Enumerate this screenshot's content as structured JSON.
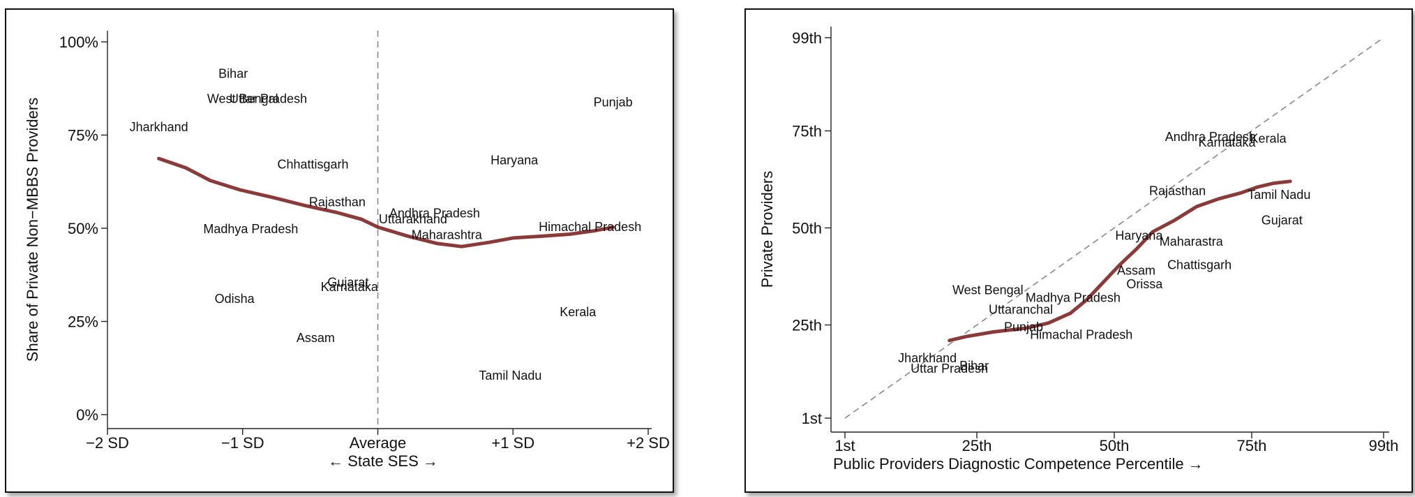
{
  "colors": {
    "trend_line": "#8b3a3a",
    "axis": "#222222",
    "reference": "#888888"
  },
  "chart_data": [
    {
      "type": "scatter",
      "ylabel": "Share of Private Non−MBBS Providers",
      "xlabel": "← State SES →",
      "xlim": [
        -2,
        2
      ],
      "ylim": [
        0,
        1
      ],
      "x_ticks": [
        {
          "value": -2,
          "label": "−2 SD"
        },
        {
          "value": -1,
          "label": "−1 SD"
        },
        {
          "value": 0,
          "label": "Average"
        },
        {
          "value": 1,
          "label": "+1 SD"
        },
        {
          "value": 2,
          "label": "+2 SD"
        }
      ],
      "y_ticks": [
        {
          "value": 0,
          "label": "0%"
        },
        {
          "value": 0.25,
          "label": "25%"
        },
        {
          "value": 0.5,
          "label": "50%"
        },
        {
          "value": 0.75,
          "label": "75%"
        },
        {
          "value": 1,
          "label": "100%"
        }
      ],
      "reference_line": {
        "type": "vertical",
        "x": 0,
        "style": "dashed"
      },
      "points": [
        {
          "label": "Bihar",
          "x": -1.07,
          "y": 0.915
        },
        {
          "label": "West Bengal",
          "x": -1.0,
          "y": 0.847
        },
        {
          "label": "Uttar Pradesh",
          "x": -0.81,
          "y": 0.847
        },
        {
          "label": "Jharkhand",
          "x": -1.62,
          "y": 0.772
        },
        {
          "label": "Punjab",
          "x": 1.74,
          "y": 0.838
        },
        {
          "label": "Chhattisgarh",
          "x": -0.48,
          "y": 0.671
        },
        {
          "label": "Haryana",
          "x": 1.01,
          "y": 0.683
        },
        {
          "label": "Rajasthan",
          "x": -0.3,
          "y": 0.57
        },
        {
          "label": "Andhra Pradesh",
          "x": 0.42,
          "y": 0.54
        },
        {
          "label": "Uttarakhand",
          "x": 0.26,
          "y": 0.524
        },
        {
          "label": "Maharashtra",
          "x": 0.51,
          "y": 0.482
        },
        {
          "label": "Himachal Pradesh",
          "x": 1.57,
          "y": 0.504
        },
        {
          "label": "Madhya Pradesh",
          "x": -0.94,
          "y": 0.498
        },
        {
          "label": "Gujarat",
          "x": -0.22,
          "y": 0.355
        },
        {
          "label": "Karnataka",
          "x": -0.21,
          "y": 0.343
        },
        {
          "label": "Odisha",
          "x": -1.06,
          "y": 0.311
        },
        {
          "label": "Kerala",
          "x": 1.48,
          "y": 0.275
        },
        {
          "label": "Assam",
          "x": -0.46,
          "y": 0.206
        },
        {
          "label": "Tamil Nadu",
          "x": 0.98,
          "y": 0.105
        }
      ],
      "trend_line": [
        [
          -1.62,
          0.687
        ],
        [
          -1.42,
          0.662
        ],
        [
          -1.24,
          0.628
        ],
        [
          -1.02,
          0.603
        ],
        [
          -0.78,
          0.583
        ],
        [
          -0.54,
          0.561
        ],
        [
          -0.3,
          0.542
        ],
        [
          -0.12,
          0.524
        ],
        [
          0.0,
          0.503
        ],
        [
          0.22,
          0.479
        ],
        [
          0.44,
          0.459
        ],
        [
          0.62,
          0.451
        ],
        [
          0.82,
          0.462
        ],
        [
          1.0,
          0.474
        ],
        [
          1.22,
          0.479
        ],
        [
          1.42,
          0.484
        ],
        [
          1.6,
          0.493
        ],
        [
          1.74,
          0.503
        ]
      ]
    },
    {
      "type": "scatter",
      "ylabel": "Private Providers",
      "xlabel": "Public Providers  Diagnostic Competence Percentile →",
      "xlim": [
        1,
        99
      ],
      "ylim": [
        1,
        99
      ],
      "x_ticks": [
        {
          "value": 1,
          "label": "1st"
        },
        {
          "value": 25,
          "label": "25th"
        },
        {
          "value": 50,
          "label": "50th"
        },
        {
          "value": 75,
          "label": "75th"
        },
        {
          "value": 99,
          "label": "99th"
        }
      ],
      "y_ticks": [
        {
          "value": 1,
          "label": "1st"
        },
        {
          "value": 25,
          "label": "25th"
        },
        {
          "value": 50,
          "label": "50th"
        },
        {
          "value": 75,
          "label": "75th"
        },
        {
          "value": 99,
          "label": "99th"
        }
      ],
      "reference_line": {
        "type": "diagonal",
        "from": [
          1,
          1
        ],
        "to": [
          99,
          99
        ],
        "style": "dashed"
      },
      "points": [
        {
          "label": "Andhra Pradesh",
          "x": 67.5,
          "y": 73.5
        },
        {
          "label": "Karnataka",
          "x": 70.5,
          "y": 72.0
        },
        {
          "label": "Kerala",
          "x": 78.0,
          "y": 73.0
        },
        {
          "label": "Rajasthan",
          "x": 61.5,
          "y": 59.5
        },
        {
          "label": "Tamil Nadu",
          "x": 80.0,
          "y": 58.5
        },
        {
          "label": "Gujarat",
          "x": 80.5,
          "y": 52.0
        },
        {
          "label": "Haryana",
          "x": 54.5,
          "y": 48.0
        },
        {
          "label": "Maharastra",
          "x": 64.0,
          "y": 46.5
        },
        {
          "label": "Chattisgarh",
          "x": 65.5,
          "y": 40.5
        },
        {
          "label": "Assam",
          "x": 54.0,
          "y": 39.0
        },
        {
          "label": "Orissa",
          "x": 55.5,
          "y": 35.5
        },
        {
          "label": "West Bengal",
          "x": 27.0,
          "y": 34.0
        },
        {
          "label": "Madhya Pradesh",
          "x": 42.5,
          "y": 32.0
        },
        {
          "label": "Uttaranchal",
          "x": 33.0,
          "y": 29.0
        },
        {
          "label": "Punjab",
          "x": 33.5,
          "y": 24.5
        },
        {
          "label": "Himachal Pradesh",
          "x": 44.0,
          "y": 22.5
        },
        {
          "label": "Jharkhand",
          "x": 16.0,
          "y": 16.5
        },
        {
          "label": "Bihar",
          "x": 24.5,
          "y": 14.5
        },
        {
          "label": "Uttar Pradesh",
          "x": 20.0,
          "y": 13.8
        }
      ],
      "trend_line": [
        [
          20,
          21.0
        ],
        [
          23,
          22.0
        ],
        [
          28,
          23.2
        ],
        [
          34,
          24.2
        ],
        [
          38,
          25.5
        ],
        [
          42,
          28.0
        ],
        [
          45,
          31.5
        ],
        [
          48,
          36.0
        ],
        [
          51,
          40.5
        ],
        [
          54,
          44.5
        ],
        [
          57,
          49.0
        ],
        [
          61,
          52.0
        ],
        [
          65,
          55.5
        ],
        [
          69,
          57.5
        ],
        [
          73,
          59.0
        ],
        [
          76,
          60.5
        ],
        [
          79,
          61.5
        ],
        [
          82,
          62.0
        ]
      ]
    }
  ]
}
